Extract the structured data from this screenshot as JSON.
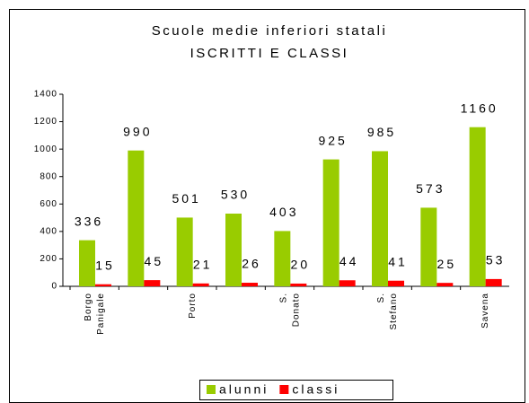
{
  "chart_data": {
    "type": "bar",
    "title": "Scuole medie inferiori statali",
    "subtitle": "ISCRITTI E CLASSI",
    "categories": [
      "Borgo Panigale",
      null,
      "Porto",
      null,
      "S. Donato",
      null,
      "S. Stefano",
      null,
      "Savena"
    ],
    "series": [
      {
        "name": "alunni",
        "color": "#99cc00",
        "label_color": "#339966",
        "values": [
          336,
          990,
          501,
          530,
          403,
          925,
          985,
          573,
          1160
        ]
      },
      {
        "name": "classi",
        "color": "#ff0000",
        "label_color": "#ff0000",
        "values": [
          15,
          45,
          21,
          26,
          20,
          44,
          41,
          25,
          53
        ]
      }
    ],
    "ylim": [
      0,
      1400
    ],
    "yticks": [
      0,
      200,
      400,
      600,
      800,
      1000,
      1200,
      1400
    ],
    "grid": false,
    "legend": "bottom"
  }
}
